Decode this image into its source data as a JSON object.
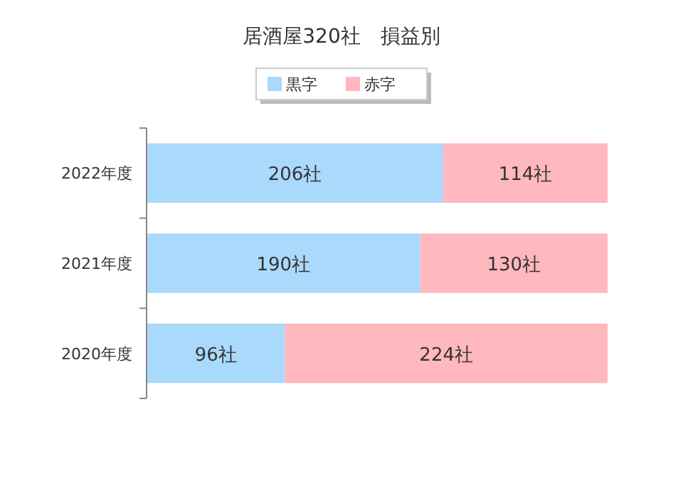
{
  "chart_data": {
    "type": "bar",
    "orientation": "horizontal",
    "stacked": true,
    "title": "居酒屋320社　損益別",
    "categories": [
      "2022年度",
      "2021年度",
      "2020年度"
    ],
    "series": [
      {
        "name": "黒字",
        "color": "#a9d9fb",
        "values": [
          206,
          190,
          96
        ],
        "value_labels": [
          "206社",
          "190社",
          "96社"
        ]
      },
      {
        "name": "赤字",
        "color": "#ffb8be",
        "values": [
          114,
          130,
          224
        ],
        "value_labels": [
          "114社",
          "130社",
          "224社"
        ]
      }
    ],
    "legend": "top"
  }
}
